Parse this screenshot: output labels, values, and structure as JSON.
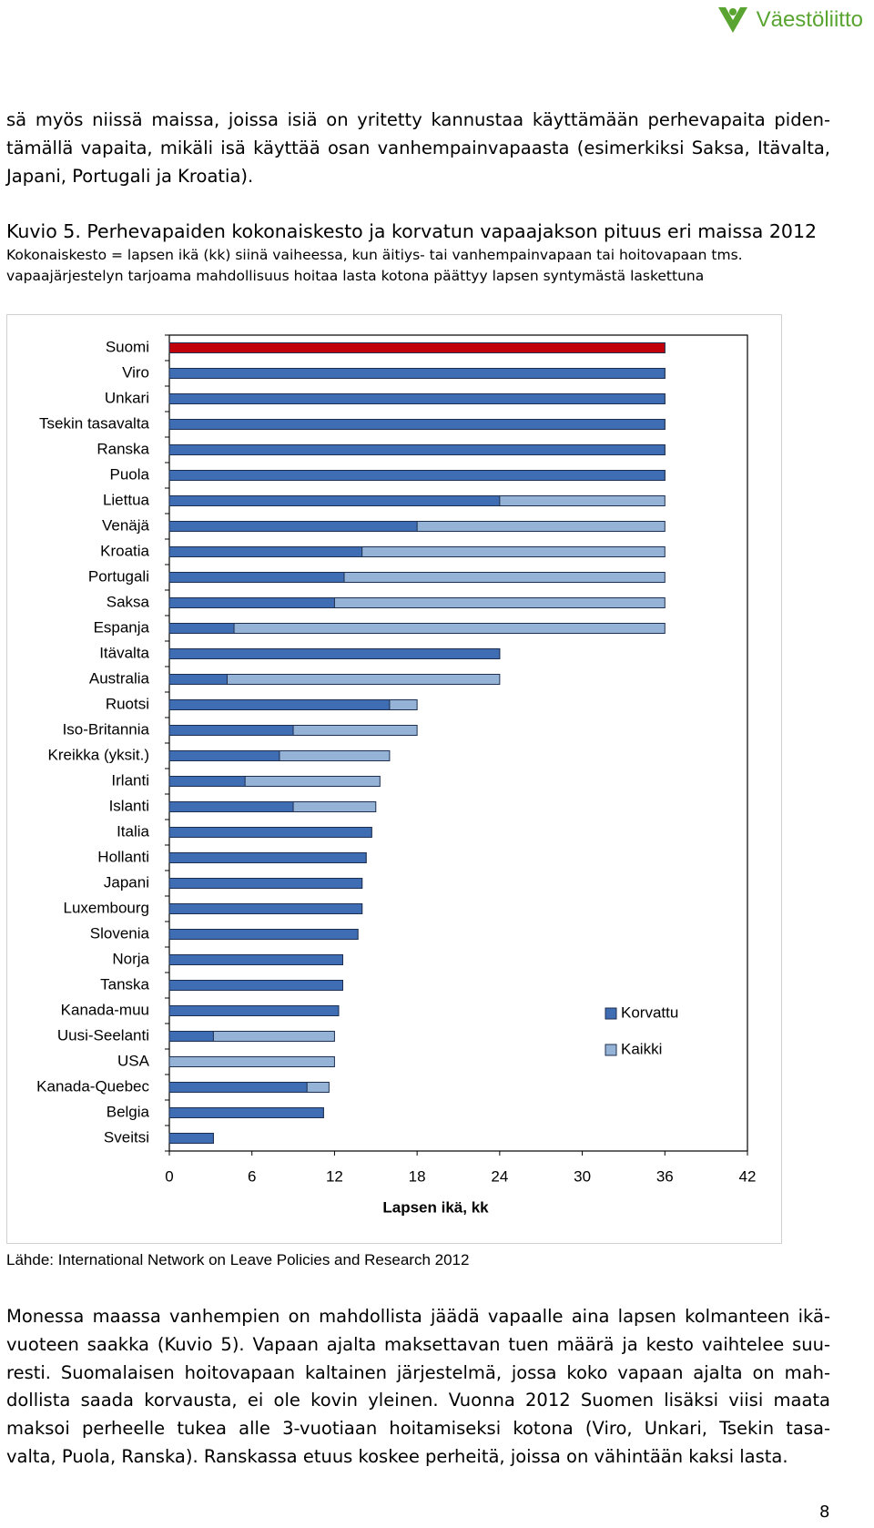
{
  "header": {
    "logo": "Väestöliitto"
  },
  "intro": {
    "lines": [
      "sä myös niissä maissa, joissa isiä on yritetty kannustaa käyttämään perhevapaita piden-",
      "tämällä vapaita, mikäli isä käyttää osan vanhempainvapaasta (esimerkiksi Saksa, Itävalta,",
      "Japani, Portugali ja Kroatia)."
    ]
  },
  "figure": {
    "title": "Kuvio 5. Perhevapaiden kokonaiskesto ja korvatun vapaajakson pituus eri maissa 2012",
    "subtitle_lines": [
      "Kokonaiskesto = lapsen ikä (kk) siinä vaiheessa, kun äitiys- tai vanhempainvapaan tai hoitovapaan tms.",
      "vapaajärjestelyn tarjoama mahdollisuus hoitaa lasta kotona päättyy lapsen syntymästä laskettuna"
    ]
  },
  "chart_data": {
    "type": "bar",
    "orientation": "horizontal",
    "categories": [
      "Suomi",
      "Viro",
      "Unkari",
      "Tsekin tasavalta",
      "Ranska",
      "Puola",
      "Liettua",
      "Venäjä",
      "Kroatia",
      "Portugali",
      "Saksa",
      "Espanja",
      "Itävalta",
      "Australia",
      "Ruotsi",
      "Iso-Britannia",
      "Kreikka (yksit.)",
      "Irlanti",
      "Islanti",
      "Italia",
      "Hollanti",
      "Japani",
      "Luxembourg",
      "Slovenia",
      "Norja",
      "Tanska",
      "Kanada-muu",
      "Uusi-Seelanti",
      "USA",
      "Kanada-Quebec",
      "Belgia",
      "Sveitsi"
    ],
    "series": [
      {
        "name": "Korvattu",
        "color": "#3e6db3",
        "values": [
          36,
          36,
          36,
          36,
          36,
          36,
          24,
          18,
          14,
          12.7,
          12,
          4.7,
          24,
          4.2,
          16,
          9,
          8,
          5.5,
          9,
          14.7,
          14.3,
          14,
          14,
          13.7,
          12.6,
          12.6,
          12.3,
          3.2,
          0,
          10,
          11.2,
          3.2
        ]
      },
      {
        "name": "Kaikki",
        "color": "#95b3d7",
        "values": [
          36,
          36,
          36,
          36,
          36,
          36,
          36,
          36,
          36,
          36,
          36,
          36,
          24,
          24,
          18,
          18,
          16,
          15.3,
          15,
          14.7,
          14.3,
          14,
          14,
          13.7,
          12.6,
          12.6,
          12.3,
          12,
          12,
          11.6,
          11.2,
          3.2
        ]
      }
    ],
    "highlight": {
      "index": 0,
      "color": "#c0000b"
    },
    "xlim": [
      0,
      42
    ],
    "xticks": [
      0,
      6,
      12,
      18,
      24,
      30,
      36,
      42
    ],
    "xlabel": "Lapsen ikä, kk",
    "legend": "right",
    "grid": false
  },
  "source": "Lähde: International Network on Leave Policies and Research 2012",
  "body": {
    "lines": [
      "Monessa maassa vanhempien on mahdollista jäädä vapaalle aina lapsen kolmanteen ikä-",
      "vuoteen saakka (Kuvio 5). Vapaan ajalta maksettavan tuen määrä ja kesto vaihtelee suu-",
      "resti. Suomalaisen hoitovapaan kaltainen järjestelmä, jossa koko vapaan ajalta on mah-",
      "dollista saada korvausta, ei ole kovin yleinen. Vuonna 2012 Suomen lisäksi viisi maata",
      "maksoi perheelle tukea alle 3-vuotiaan hoitamiseksi kotona (Viro, Unkari, Tsekin tasa-",
      "valta, Puola, Ranska). Ranskassa etuus koskee perheitä, joissa on vähintään kaksi lasta."
    ]
  },
  "page_number": "8"
}
